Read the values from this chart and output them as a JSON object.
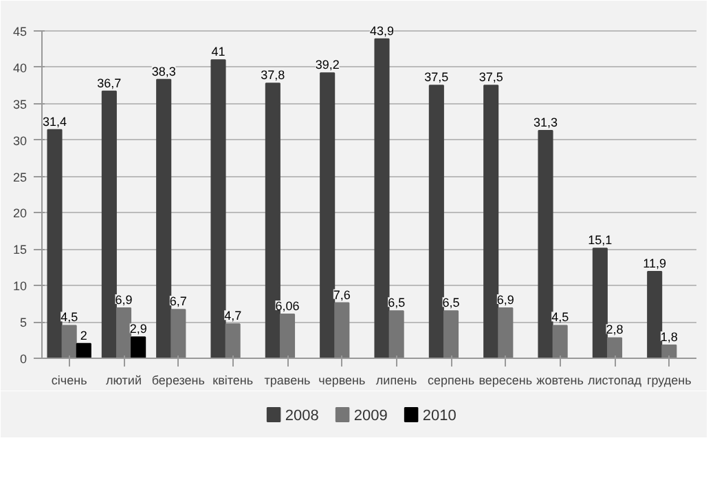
{
  "chart_data": {
    "type": "bar",
    "categories": [
      "січень",
      "лютий",
      "березень",
      "квітень",
      "травень",
      "червень",
      "липень",
      "серпень",
      "вересень",
      "жовтень",
      "листопад",
      "грудень"
    ],
    "series": [
      {
        "name": "2008",
        "color": "#404040",
        "values": [
          31.4,
          36.7,
          38.3,
          41,
          37.8,
          39.2,
          43.9,
          37.5,
          37.5,
          31.3,
          15.1,
          11.9
        ],
        "value_labels": [
          "31,4",
          "36,7",
          "38,3",
          "41",
          "37,8",
          "39,2",
          "43,9",
          "37,5",
          "37,5",
          "31,3",
          "15,1",
          "11,9"
        ]
      },
      {
        "name": "2009",
        "color": "#767676",
        "values": [
          4.5,
          6.9,
          6.7,
          4.7,
          6.06,
          7.6,
          6.5,
          6.5,
          6.9,
          4.5,
          2.8,
          1.8
        ],
        "value_labels": [
          "4,5",
          "6,9",
          "6,7",
          "4,7",
          "6,06",
          "7,6",
          "6,5",
          "6,5",
          "6,9",
          "4,5",
          "2,8",
          "1,8"
        ]
      },
      {
        "name": "2010",
        "color": "#000000",
        "values": [
          2,
          2.9,
          null,
          null,
          null,
          null,
          null,
          null,
          null,
          null,
          null,
          null
        ],
        "value_labels": [
          "2",
          "2,9",
          null,
          null,
          null,
          null,
          null,
          null,
          null,
          null,
          null,
          null
        ]
      }
    ],
    "ylim": [
      0,
      45
    ],
    "yticks": [
      0,
      5,
      10,
      15,
      20,
      25,
      30,
      35,
      40,
      45
    ],
    "grid": "y",
    "legend": "bottom"
  }
}
